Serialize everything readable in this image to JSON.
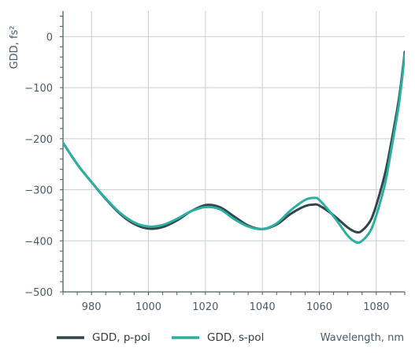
{
  "chart_data": {
    "type": "line",
    "ylabel": "GDD, fs²",
    "xlabel": "Wavelength, nm",
    "xlim": [
      970,
      1090
    ],
    "ylim": [
      -500,
      50
    ],
    "x_ticks": [
      980,
      1000,
      1020,
      1040,
      1060,
      1080
    ],
    "y_ticks": [
      0,
      -100,
      -200,
      -300,
      -400,
      -500
    ],
    "x_tick_labels": [
      "980",
      "1000",
      "1020",
      "1040",
      "1060",
      "1080"
    ],
    "y_tick_labels": [
      "0",
      "−100",
      "−200",
      "−300",
      "−400",
      "−500"
    ],
    "grid": true,
    "legend_position": "bottom-left",
    "series": [
      {
        "name": "GDD, p-pol",
        "color": "#33444f",
        "x": [
          970,
          975,
          980,
          985,
          990,
          995,
          1000,
          1005,
          1010,
          1015,
          1020,
          1025,
          1030,
          1035,
          1040,
          1045,
          1050,
          1055,
          1058,
          1060,
          1065,
          1070,
          1073,
          1075,
          1078,
          1080,
          1083,
          1085,
          1088,
          1090
        ],
        "y": [
          -208,
          -250,
          -285,
          -318,
          -347,
          -367,
          -376,
          -373,
          -360,
          -342,
          -330,
          -334,
          -352,
          -370,
          -377,
          -368,
          -347,
          -332,
          -329,
          -331,
          -350,
          -374,
          -383,
          -380,
          -360,
          -330,
          -270,
          -215,
          -120,
          -30
        ]
      },
      {
        "name": "GDD, s-pol",
        "color": "#2bb0a0",
        "x": [
          970,
          975,
          980,
          985,
          990,
          995,
          1000,
          1005,
          1010,
          1015,
          1020,
          1025,
          1030,
          1035,
          1040,
          1045,
          1050,
          1055,
          1058,
          1060,
          1065,
          1070,
          1073,
          1075,
          1078,
          1080,
          1083,
          1085,
          1088,
          1090
        ],
        "y": [
          -208,
          -250,
          -285,
          -317,
          -345,
          -364,
          -372,
          -369,
          -357,
          -342,
          -334,
          -338,
          -357,
          -372,
          -377,
          -366,
          -340,
          -320,
          -316,
          -320,
          -352,
          -390,
          -403,
          -400,
          -380,
          -350,
          -290,
          -230,
          -130,
          -35
        ]
      }
    ]
  }
}
